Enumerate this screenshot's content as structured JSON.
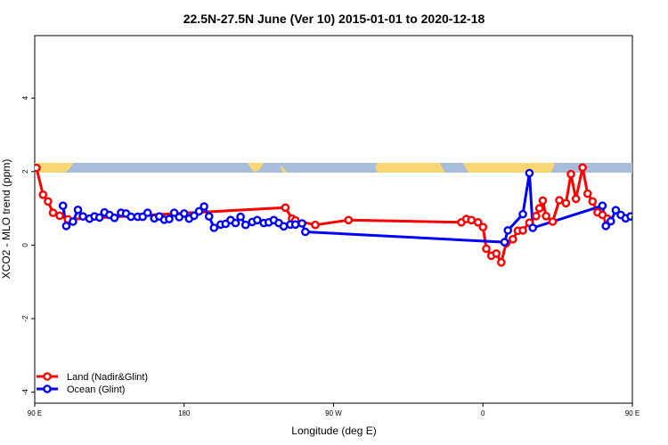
{
  "chart_data": {
    "type": "line",
    "title": "22.5N-27.5N June (Ver 10)   2015-01-01 to 2020-12-18",
    "xlabel": "Longitude (deg E)",
    "ylabel": "XCO2 - MLO trend (ppm)",
    "xlim": [
      -90,
      270
    ],
    "ylim": [
      -4.3,
      5.7
    ],
    "x_ticks": [
      {
        "value": -90,
        "label": "90 E"
      },
      {
        "value": 0,
        "label": "180"
      },
      {
        "value": 90,
        "label": "90 W"
      },
      {
        "value": 180,
        "label": "0"
      },
      {
        "value": 270,
        "label": "90 E"
      },
      {
        "value": 360,
        "label": "180"
      }
    ],
    "y_ticks": [
      {
        "value": -4,
        "label": "-4"
      },
      {
        "value": -2,
        "label": "-2"
      },
      {
        "value": 0,
        "label": "0"
      },
      {
        "value": 2,
        "label": "2"
      },
      {
        "value": 4,
        "label": "4"
      }
    ],
    "map_strip": {
      "ymin": 2.0,
      "ymax": 2.25,
      "ocean_color": "#a7bddb",
      "land_color": "#f7d673"
    },
    "legend_position": "bottom-left",
    "series": [
      {
        "name": "Land (Nadir&Glint)",
        "color": "#ff0000",
        "points": [
          [
            -89,
            2.1
          ],
          [
            -85,
            1.37
          ],
          [
            -82,
            1.19
          ],
          [
            -79,
            0.88
          ],
          [
            -75,
            0.8
          ],
          [
            -70,
            0.7
          ],
          [
            61,
            1.02
          ],
          [
            65,
            0.72
          ],
          [
            67,
            0.67
          ],
          [
            79,
            0.55
          ],
          [
            99,
            0.68
          ],
          [
            167,
            0.62
          ],
          [
            170,
            0.71
          ],
          [
            173,
            0.68
          ],
          [
            177,
            0.62
          ],
          [
            180,
            0.49
          ],
          [
            182,
            -0.1
          ],
          [
            185,
            -0.29
          ],
          [
            188,
            -0.23
          ],
          [
            191,
            -0.47
          ],
          [
            194,
            0.05
          ],
          [
            198,
            0.16
          ],
          [
            201,
            0.39
          ],
          [
            204,
            0.4
          ],
          [
            208,
            0.61
          ],
          [
            212,
            0.79
          ],
          [
            214,
            1.0
          ],
          [
            216,
            1.21
          ],
          [
            218,
            0.79
          ],
          [
            222,
            0.64
          ],
          [
            226,
            1.22
          ],
          [
            230,
            1.14
          ],
          [
            233,
            1.93
          ],
          [
            236,
            1.26
          ],
          [
            240,
            2.11
          ],
          [
            243,
            1.4
          ],
          [
            246,
            1.19
          ],
          [
            249,
            0.89
          ],
          [
            252,
            0.82
          ],
          [
            255,
            0.72
          ]
        ]
      },
      {
        "name": "Ocean (Glint)",
        "color": "#0000ff",
        "points": [
          [
            -73,
            1.07
          ],
          [
            -71,
            0.52
          ],
          [
            -67,
            0.64
          ],
          [
            -64,
            0.96
          ],
          [
            -61,
            0.78
          ],
          [
            -57,
            0.72
          ],
          [
            -54,
            0.78
          ],
          [
            -51,
            0.75
          ],
          [
            -48,
            0.89
          ],
          [
            -45,
            0.82
          ],
          [
            -42,
            0.74
          ],
          [
            -38,
            0.88
          ],
          [
            -35,
            0.86
          ],
          [
            -32,
            0.77
          ],
          [
            -28,
            0.77
          ],
          [
            -25,
            0.77
          ],
          [
            -22,
            0.88
          ],
          [
            -18,
            0.73
          ],
          [
            -15,
            0.78
          ],
          [
            -12,
            0.69
          ],
          [
            -9,
            0.71
          ],
          [
            -6,
            0.88
          ],
          [
            -3,
            0.76
          ],
          [
            0,
            0.86
          ],
          [
            3,
            0.72
          ],
          [
            6,
            0.8
          ],
          [
            9,
            0.92
          ],
          [
            12,
            1.05
          ],
          [
            15,
            0.78
          ],
          [
            18,
            0.47
          ],
          [
            22,
            0.56
          ],
          [
            25,
            0.58
          ],
          [
            28,
            0.68
          ],
          [
            31,
            0.6
          ],
          [
            34,
            0.77
          ],
          [
            37,
            0.55
          ],
          [
            41,
            0.63
          ],
          [
            44,
            0.68
          ],
          [
            48,
            0.6
          ],
          [
            51,
            0.62
          ],
          [
            54,
            0.68
          ],
          [
            57,
            0.6
          ],
          [
            60,
            0.51
          ],
          [
            64,
            0.56
          ],
          [
            67,
            0.56
          ],
          [
            71,
            0.59
          ],
          [
            73,
            0.36
          ],
          [
            193,
            0.08
          ],
          [
            195,
            0.4
          ],
          [
            204,
            0.84
          ],
          [
            208,
            1.96
          ],
          [
            210,
            0.47
          ],
          [
            252,
            1.07
          ],
          [
            254,
            0.52
          ],
          [
            257,
            0.65
          ],
          [
            260,
            0.95
          ],
          [
            263,
            0.82
          ],
          [
            266,
            0.73
          ],
          [
            269,
            0.78
          ],
          [
            272,
            0.75
          ],
          [
            275,
            0.87
          ],
          [
            278,
            0.78
          ],
          [
            281,
            0.72
          ],
          [
            284,
            0.87
          ],
          [
            287,
            0.83
          ]
        ]
      }
    ]
  }
}
